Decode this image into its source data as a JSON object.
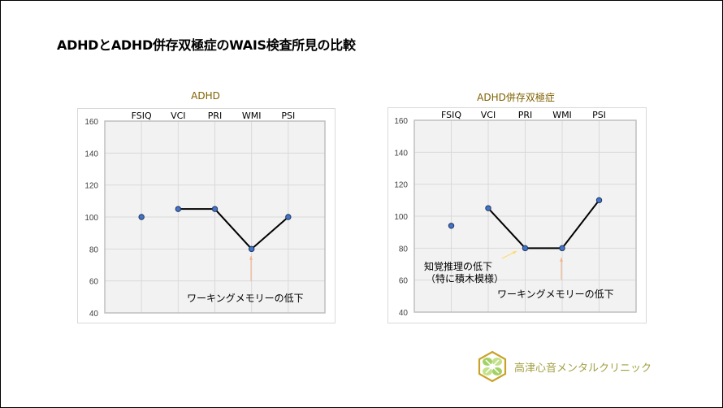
{
  "title": "ADHDとADHD併存双極症のWAIS検査所見の比較",
  "logo_text": "高津心音メンタルクリニック",
  "colors": {
    "marker": "#4472c4",
    "line": "#000000",
    "title": "#7f6000",
    "arrow_orange": "#f4b183",
    "arrow_yellow": "#ffd966",
    "plot_bg": "#f2f2f2",
    "grid": "#d9d9d9"
  },
  "chart_data": [
    {
      "type": "line",
      "title": "ADHD",
      "categories": [
        "FSIQ",
        "VCI",
        "PRI",
        "WMI",
        "PSI"
      ],
      "values": [
        100,
        105,
        105,
        80,
        100
      ],
      "line_connects": [
        "VCI",
        "PRI",
        "WMI",
        "PSI"
      ],
      "ylim": [
        40,
        160
      ],
      "yticks": [
        40,
        60,
        80,
        100,
        120,
        140,
        160
      ],
      "grid": true,
      "annotations": [
        {
          "text": "ワーキングメモリーの低下",
          "points_to": "WMI"
        }
      ]
    },
    {
      "type": "line",
      "title": "ADHD併存双極症",
      "categories": [
        "FSIQ",
        "VCI",
        "PRI",
        "WMI",
        "PSI"
      ],
      "values": [
        94,
        105,
        80,
        80,
        110
      ],
      "line_connects": [
        "VCI",
        "PRI",
        "WMI",
        "PSI"
      ],
      "ylim": [
        40,
        160
      ],
      "yticks": [
        40,
        60,
        80,
        100,
        120,
        140,
        160
      ],
      "grid": true,
      "annotations": [
        {
          "text": "知覚推理の低下",
          "text2": "（特に積木模様）",
          "points_to": "PRI"
        },
        {
          "text": "ワーキングメモリーの低下",
          "points_to": "WMI"
        }
      ]
    }
  ]
}
